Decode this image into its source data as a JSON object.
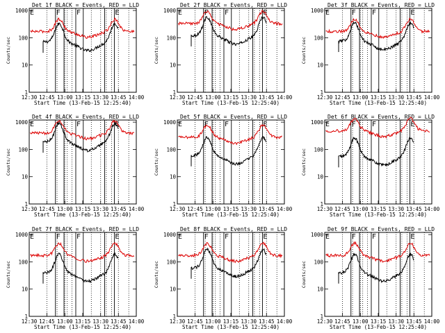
{
  "chart_data": {
    "type": "line",
    "panels": [
      {
        "title": "Det 1f BLACK = Events, RED = LLD",
        "series": [
          {
            "color": "#000000",
            "base": 70,
            "start": 1
          },
          {
            "color": "#dd0000",
            "base": 170,
            "start": 0
          }
        ],
        "xlabel": "Start Time (13-Feb-15 12:25:40)",
        "ylabel": "Counts/sec",
        "xticks": [
          "12:30",
          "12:45",
          "13:00",
          "13:15",
          "13:30",
          "13:45",
          "14:00"
        ],
        "yticks": [
          "1",
          "10",
          "100",
          "1000"
        ],
        "markers": [
          "E",
          "F",
          "F",
          "E"
        ]
      },
      {
        "title": "Det 2f BLACK = Events, RED = LLD",
        "series": [
          {
            "color": "#000000",
            "base": 120,
            "start": 1
          },
          {
            "color": "#dd0000",
            "base": 330,
            "start": 0
          }
        ],
        "xlabel": "Start Time (13-Feb-15 12:25:40)",
        "ylabel": "Counts/sec",
        "xticks": [
          "12:30",
          "12:45",
          "13:00",
          "13:15",
          "13:30",
          "13:45",
          "14:00"
        ],
        "yticks": [
          "1",
          "10",
          "100",
          "1000"
        ],
        "markers": [
          "E",
          "F",
          "F",
          "E"
        ]
      },
      {
        "title": "Det 3f BLACK = Events, RED = LLD",
        "series": [
          {
            "color": "#000000",
            "base": 75,
            "start": 1
          },
          {
            "color": "#dd0000",
            "base": 170,
            "start": 0
          }
        ],
        "xlabel": "Start Time (13-Feb-15 12:25:40)",
        "ylabel": "Counts/sec",
        "xticks": [
          "12:30",
          "12:45",
          "13:00",
          "13:15",
          "13:30",
          "13:45",
          "14:00"
        ],
        "yticks": [
          "1",
          "10",
          "100",
          "1000"
        ],
        "markers": [
          "E",
          "F",
          "F",
          "E"
        ]
      },
      {
        "title": "Det 4f BLACK = Events, RED = LLD",
        "series": [
          {
            "color": "#000000",
            "base": 190,
            "start": 1
          },
          {
            "color": "#dd0000",
            "base": 400,
            "start": 0
          }
        ],
        "xlabel": "Start Time (13-Feb-15 12:25:40)",
        "ylabel": "Counts/sec",
        "xticks": [
          "12:30",
          "12:45",
          "13:00",
          "13:15",
          "13:30",
          "13:45",
          "14:00"
        ],
        "yticks": [
          "1",
          "10",
          "100",
          "1000"
        ],
        "markers": [
          "E",
          "F",
          "F",
          "E"
        ]
      },
      {
        "title": "Det 5f BLACK = Events, RED = LLD",
        "series": [
          {
            "color": "#000000",
            "base": 60,
            "start": 1
          },
          {
            "color": "#dd0000",
            "base": 280,
            "start": 0
          }
        ],
        "xlabel": "Start Time (13-Feb-15 12:25:40)",
        "ylabel": "Counts/sec",
        "xticks": [
          "12:30",
          "12:45",
          "13:00",
          "13:15",
          "13:30",
          "13:45",
          "14:00"
        ],
        "yticks": [
          "1",
          "10",
          "100",
          "1000"
        ],
        "markers": [
          "E",
          "F",
          "F",
          "E"
        ]
      },
      {
        "title": "Det 6f BLACK = Events, RED = LLD",
        "series": [
          {
            "color": "#000000",
            "base": 55,
            "start": 1
          },
          {
            "color": "#dd0000",
            "base": 480,
            "start": 0
          }
        ],
        "xlabel": "Start Time (13-Feb-15 12:25:40)",
        "ylabel": "Counts/sec",
        "xticks": [
          "12:30",
          "12:45",
          "13:00",
          "13:15",
          "13:30",
          "13:45",
          "14:00"
        ],
        "yticks": [
          "1",
          "10",
          "100",
          "1000"
        ],
        "markers": [
          "E",
          "F",
          "F",
          "E"
        ]
      },
      {
        "title": "Det 7f BLACK = Events, RED = LLD",
        "series": [
          {
            "color": "#000000",
            "base": 40,
            "start": 1
          },
          {
            "color": "#dd0000",
            "base": 170,
            "start": 0
          }
        ],
        "xlabel": "Start Time (13-Feb-15 12:25:40)",
        "ylabel": "Counts/sec",
        "xticks": [
          "12:30",
          "12:45",
          "13:00",
          "13:15",
          "13:30",
          "13:45",
          "14:00"
        ],
        "yticks": [
          "1",
          "10",
          "100",
          "1000"
        ],
        "markers": [
          "E",
          "F",
          "F",
          "E"
        ]
      },
      {
        "title": "Det 8f BLACK = Events, RED = LLD",
        "series": [
          {
            "color": "#000000",
            "base": 60,
            "start": 1
          },
          {
            "color": "#dd0000",
            "base": 170,
            "start": 0
          }
        ],
        "xlabel": "Start Time (13-Feb-15 12:25:40)",
        "ylabel": "Counts/sec",
        "xticks": [
          "12:30",
          "12:45",
          "13:00",
          "13:15",
          "13:30",
          "13:45",
          "14:00"
        ],
        "yticks": [
          "1",
          "10",
          "100",
          "1000"
        ],
        "markers": [
          "E",
          "F",
          "F",
          "E"
        ]
      },
      {
        "title": "Det 9f BLACK = Events, RED = LLD",
        "series": [
          {
            "color": "#000000",
            "base": 40,
            "start": 1
          },
          {
            "color": "#dd0000",
            "base": 170,
            "start": 0
          }
        ],
        "xlabel": "Start Time (13-Feb-15 12:25:40)",
        "ylabel": "Counts/sec",
        "xticks": [
          "12:30",
          "12:45",
          "13:00",
          "13:15",
          "13:30",
          "13:45",
          "14:00"
        ],
        "yticks": [
          "1",
          "10",
          "100",
          "1000"
        ],
        "markers": [
          "E",
          "F",
          "F",
          "E"
        ]
      }
    ],
    "yscale": "log",
    "ylim": [
      1,
      1200
    ],
    "grid": false
  }
}
